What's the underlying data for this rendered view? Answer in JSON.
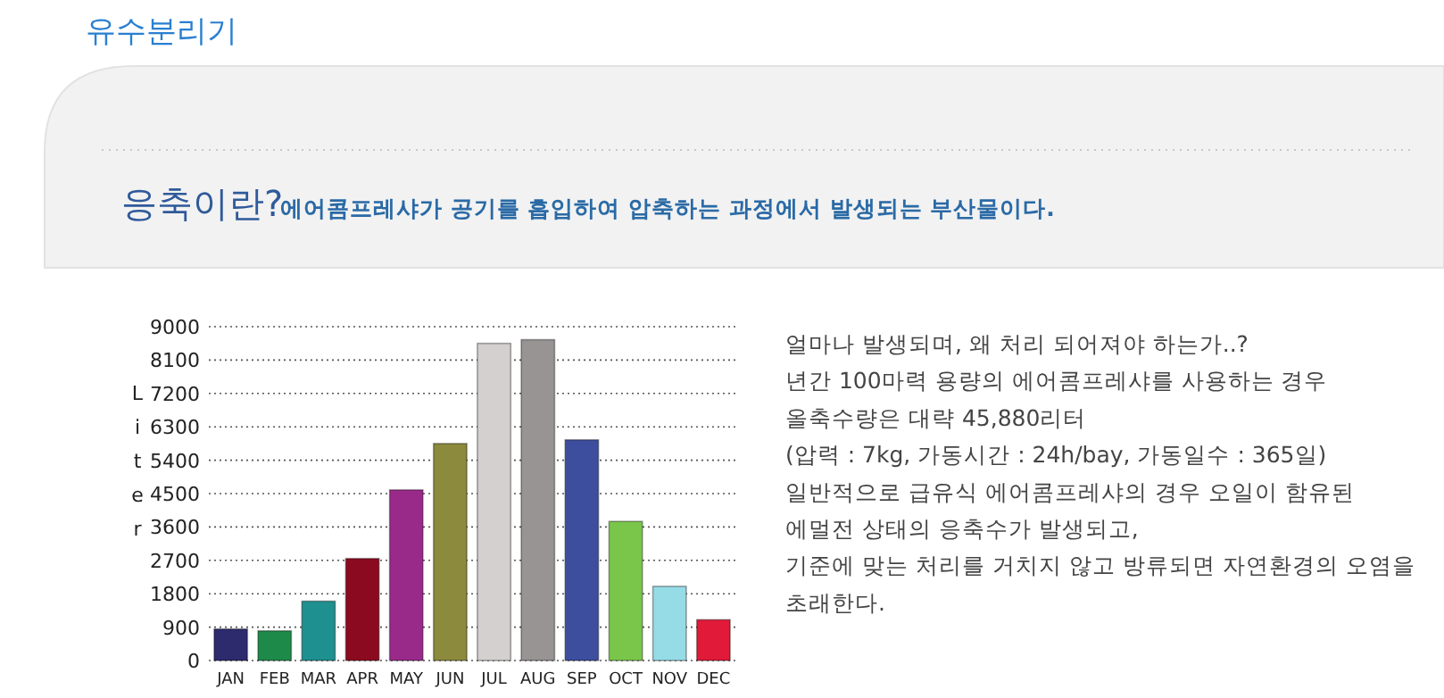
{
  "chart_data": {
    "type": "bar",
    "title": "유수분리기",
    "subtitle": "응축이란?",
    "annotations": [
      "에어콤프레샤가 공기를 흡입하여 압축하는 과정에서 발생되는 부산물이다.",
      "얼마나 발생되며, 왜 처리 되어져야 하는가..?",
      "년간 100마력 용량의 에어콤프레샤를 사용하는 경우",
      "올축수량은 대략 45,880리터",
      "(압력 : 7kg, 가동시간 : 24h/bay, 가동일수 : 365일)",
      "일반적으로 급유식 에어콤프레샤의 경우 오일이 함유된",
      "에멀전 상태의 응축수가 발생되고,",
      "기준에 맞는 처리를 거치지 않고 방류되면 자연환경의 오염을",
      "초래한다."
    ],
    "ylabel": "Liter",
    "categories": [
      "JAN",
      "FEB",
      "MAR",
      "APR",
      "MAY",
      "JUN",
      "JUL",
      "AUG",
      "SEP",
      "OCT",
      "NOV",
      "DEC"
    ],
    "values": [
      850,
      800,
      1600,
      2750,
      4600,
      5850,
      8550,
      8650,
      5950,
      3750,
      2000,
      1100
    ],
    "colors": [
      "#2e2a6e",
      "#1e8a4a",
      "#1e9090",
      "#8c0a20",
      "#9a2a8a",
      "#8c8a3c",
      "#d4d0d0",
      "#989494",
      "#3e4e9e",
      "#7ac64a",
      "#96dce6",
      "#e01a38"
    ],
    "ylim": [
      0,
      9000
    ],
    "yticks": [
      0,
      900,
      1800,
      2700,
      3600,
      4500,
      5400,
      6300,
      7200,
      8100,
      9000
    ],
    "grid": "y"
  }
}
